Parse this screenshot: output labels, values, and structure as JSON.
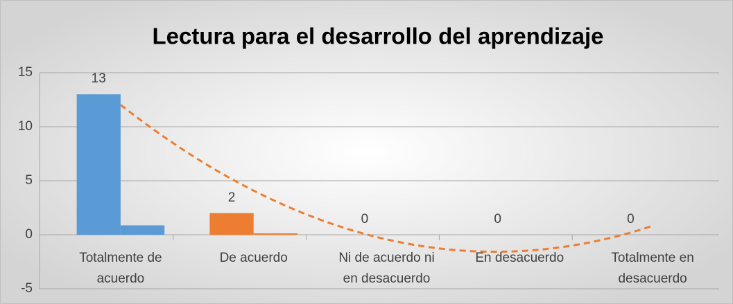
{
  "chart_data": {
    "type": "bar",
    "title": "Lectura para el desarrollo del aprendizaje",
    "categories": [
      "Totalmente de acuerdo",
      "De acuerdo",
      "Ni de acuerdo ni en desacuerdo",
      "En desacuerdo",
      "Totalmente en desacuerdo"
    ],
    "series": [
      {
        "colors": [
          "#5b9bd5",
          "#ed7d31",
          "#a5a5a5",
          "#ffc000",
          "#4472c4"
        ],
        "values": [
          13,
          2,
          0,
          0,
          0
        ]
      },
      {
        "colors": [
          "#5b9bd5",
          "#ed7d31",
          "#a5a5a5",
          "#ffc000",
          "#4472c4"
        ],
        "values": [
          0.87,
          0.13,
          0,
          0,
          0
        ]
      }
    ],
    "trendline": {
      "type": "polynomial",
      "order": 2,
      "color": "#ed7d31"
    },
    "ylim": [
      -5,
      15
    ],
    "yticks": [
      -5,
      0,
      5,
      10,
      15
    ],
    "grid": true
  }
}
